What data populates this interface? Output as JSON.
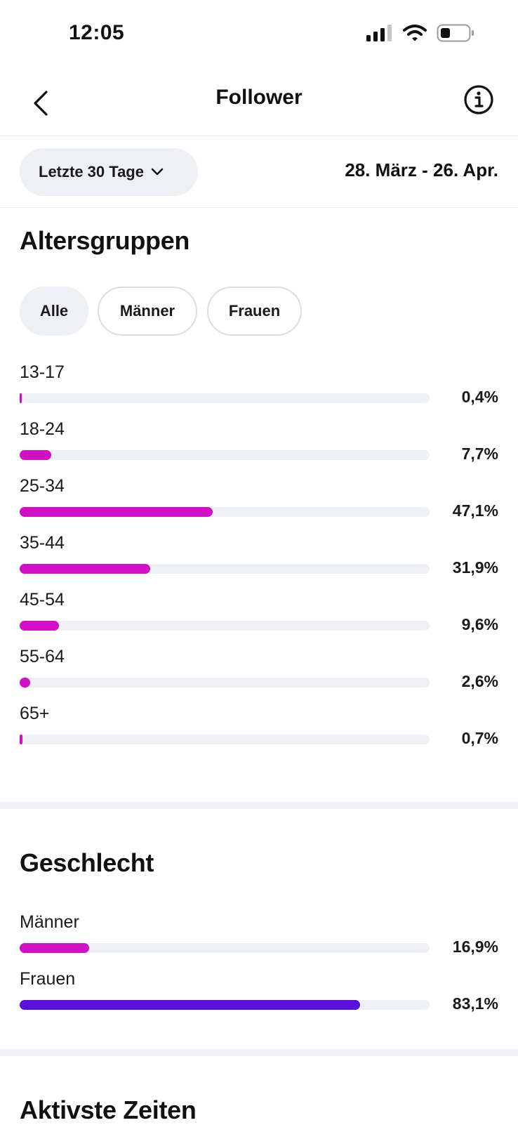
{
  "status": {
    "time": "12:05"
  },
  "nav": {
    "title": "Follower"
  },
  "filter": {
    "range_label": "Letzte 30 Tage",
    "date_range": "28. März - 26. Apr."
  },
  "age": {
    "title": "Altersgruppen",
    "chips": [
      "Alle",
      "Männer",
      "Frauen"
    ],
    "active_chip": 0,
    "bar_color": "#d10fc4",
    "rows": [
      {
        "label": "13-17",
        "value": "0,4%",
        "pct": 0.4
      },
      {
        "label": "18-24",
        "value": "7,7%",
        "pct": 7.7
      },
      {
        "label": "25-34",
        "value": "47,1%",
        "pct": 47.1
      },
      {
        "label": "35-44",
        "value": "31,9%",
        "pct": 31.9
      },
      {
        "label": "45-54",
        "value": "9,6%",
        "pct": 9.6
      },
      {
        "label": "55-64",
        "value": "2,6%",
        "pct": 2.6
      },
      {
        "label": "65+",
        "value": "0,7%",
        "pct": 0.7
      }
    ]
  },
  "gender": {
    "title": "Geschlecht",
    "rows": [
      {
        "label": "Männer",
        "value": "16,9%",
        "pct": 16.9,
        "color": "#d10fc4"
      },
      {
        "label": "Frauen",
        "value": "83,1%",
        "pct": 83.1,
        "color": "#5a10dc"
      }
    ]
  },
  "active_times": {
    "title": "Aktivste Zeiten"
  }
}
